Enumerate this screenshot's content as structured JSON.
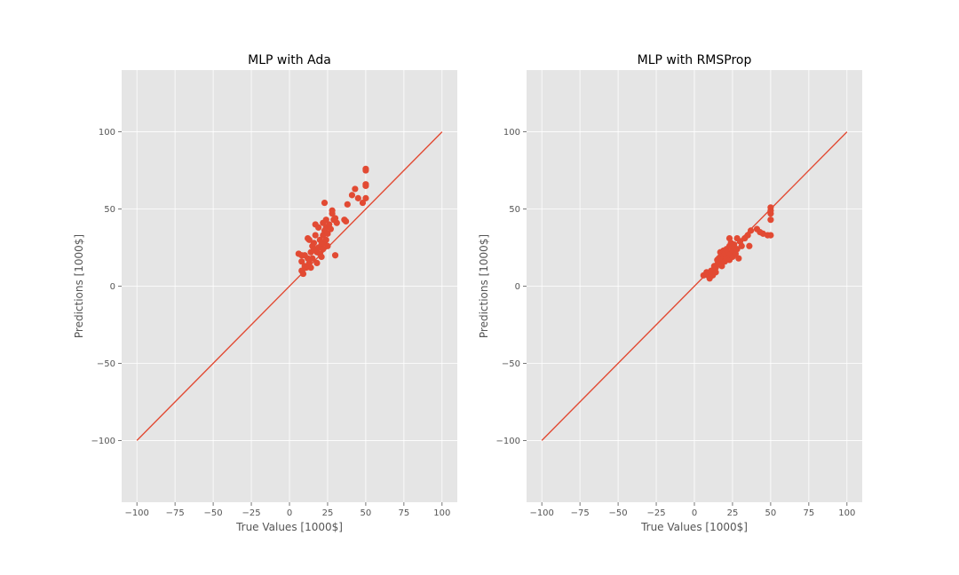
{
  "colors": {
    "panel_background": "#e5e5e5",
    "grid": "#ffffff",
    "series": "#e24a33",
    "tick_text": "#555555",
    "title_text": "#000000"
  },
  "chart_data": [
    {
      "type": "scatter",
      "title": "MLP with Ada",
      "xlabel": "True Values [1000$]",
      "ylabel": "Predictions [1000$]",
      "xlim": [
        -110,
        110
      ],
      "ylim": [
        -140,
        140
      ],
      "xticks": [
        -100,
        -75,
        -50,
        -25,
        0,
        25,
        50,
        75,
        100
      ],
      "xtick_labels": [
        "−100",
        "−75",
        "−50",
        "−25",
        "0",
        "25",
        "50",
        "75",
        "100"
      ],
      "yticks": [
        -100,
        -50,
        0,
        50,
        100
      ],
      "ytick_labels": [
        "−100",
        "−50",
        "0",
        "50",
        "100"
      ],
      "grid": true,
      "reference_line": {
        "x": [
          -100,
          100
        ],
        "y": [
          -100,
          100
        ]
      },
      "points": [
        [
          6,
          21
        ],
        [
          8,
          20
        ],
        [
          8,
          16
        ],
        [
          8,
          10
        ],
        [
          9,
          8
        ],
        [
          10,
          13
        ],
        [
          10,
          20
        ],
        [
          11,
          12
        ],
        [
          12,
          18
        ],
        [
          12,
          31
        ],
        [
          13,
          30
        ],
        [
          13,
          15
        ],
        [
          14,
          12
        ],
        [
          14,
          22
        ],
        [
          15,
          26
        ],
        [
          15,
          18
        ],
        [
          16,
          24
        ],
        [
          16,
          28
        ],
        [
          17,
          33
        ],
        [
          17,
          40
        ],
        [
          18,
          22
        ],
        [
          18,
          15
        ],
        [
          19,
          25
        ],
        [
          19,
          38
        ],
        [
          20,
          30
        ],
        [
          20,
          21
        ],
        [
          21,
          27
        ],
        [
          21,
          19
        ],
        [
          22,
          24
        ],
        [
          22,
          33
        ],
        [
          22,
          41
        ],
        [
          23,
          36
        ],
        [
          23,
          28
        ],
        [
          23,
          54
        ],
        [
          24,
          30
        ],
        [
          24,
          43
        ],
        [
          24,
          38
        ],
        [
          25,
          26
        ],
        [
          25,
          34
        ],
        [
          26,
          40
        ],
        [
          27,
          37
        ],
        [
          28,
          47
        ],
        [
          28,
          49
        ],
        [
          29,
          43
        ],
        [
          30,
          20
        ],
        [
          30,
          44
        ],
        [
          31,
          41
        ],
        [
          36,
          43
        ],
        [
          37,
          42
        ],
        [
          38,
          53
        ],
        [
          41,
          59
        ],
        [
          43,
          63
        ],
        [
          45,
          57
        ],
        [
          48,
          54
        ],
        [
          50,
          57
        ],
        [
          50,
          65
        ],
        [
          50,
          66
        ],
        [
          50,
          76
        ],
        [
          50,
          75
        ]
      ]
    },
    {
      "type": "scatter",
      "title": "MLP with RMSProp",
      "xlabel": "True Values [1000$]",
      "ylabel": "Predictions [1000$]",
      "xlim": [
        -110,
        110
      ],
      "ylim": [
        -140,
        140
      ],
      "xticks": [
        -100,
        -75,
        -50,
        -25,
        0,
        25,
        50,
        75,
        100
      ],
      "xtick_labels": [
        "−100",
        "−75",
        "−50",
        "−25",
        "0",
        "25",
        "50",
        "75",
        "100"
      ],
      "yticks": [
        -100,
        -50,
        0,
        50,
        100
      ],
      "ytick_labels": [
        "−100",
        "−50",
        "0",
        "50",
        "100"
      ],
      "grid": true,
      "reference_line": {
        "x": [
          -100,
          100
        ],
        "y": [
          -100,
          100
        ]
      },
      "points": [
        [
          6,
          7
        ],
        [
          8,
          9
        ],
        [
          9,
          7
        ],
        [
          10,
          5
        ],
        [
          11,
          8
        ],
        [
          11,
          10
        ],
        [
          12,
          7
        ],
        [
          13,
          11
        ],
        [
          13,
          13
        ],
        [
          14,
          9
        ],
        [
          14,
          12
        ],
        [
          15,
          14
        ],
        [
          15,
          17
        ],
        [
          16,
          15
        ],
        [
          16,
          18
        ],
        [
          17,
          19
        ],
        [
          17,
          22
        ],
        [
          18,
          17
        ],
        [
          18,
          13
        ],
        [
          19,
          20
        ],
        [
          19,
          23
        ],
        [
          20,
          16
        ],
        [
          20,
          21
        ],
        [
          21,
          18
        ],
        [
          21,
          24
        ],
        [
          22,
          19
        ],
        [
          22,
          22
        ],
        [
          23,
          17
        ],
        [
          23,
          26
        ],
        [
          23,
          31
        ],
        [
          24,
          21
        ],
        [
          24,
          28
        ],
        [
          25,
          23
        ],
        [
          25,
          19
        ],
        [
          26,
          27
        ],
        [
          26,
          25
        ],
        [
          27,
          21
        ],
        [
          28,
          31
        ],
        [
          28,
          24
        ],
        [
          29,
          18
        ],
        [
          30,
          29
        ],
        [
          31,
          26
        ],
        [
          33,
          31
        ],
        [
          35,
          33
        ],
        [
          36,
          26
        ],
        [
          37,
          36
        ],
        [
          41,
          37
        ],
        [
          43,
          35
        ],
        [
          45,
          34
        ],
        [
          48,
          33
        ],
        [
          50,
          33
        ],
        [
          50,
          43
        ],
        [
          50,
          47
        ],
        [
          50,
          49
        ],
        [
          50,
          51
        ]
      ]
    }
  ]
}
